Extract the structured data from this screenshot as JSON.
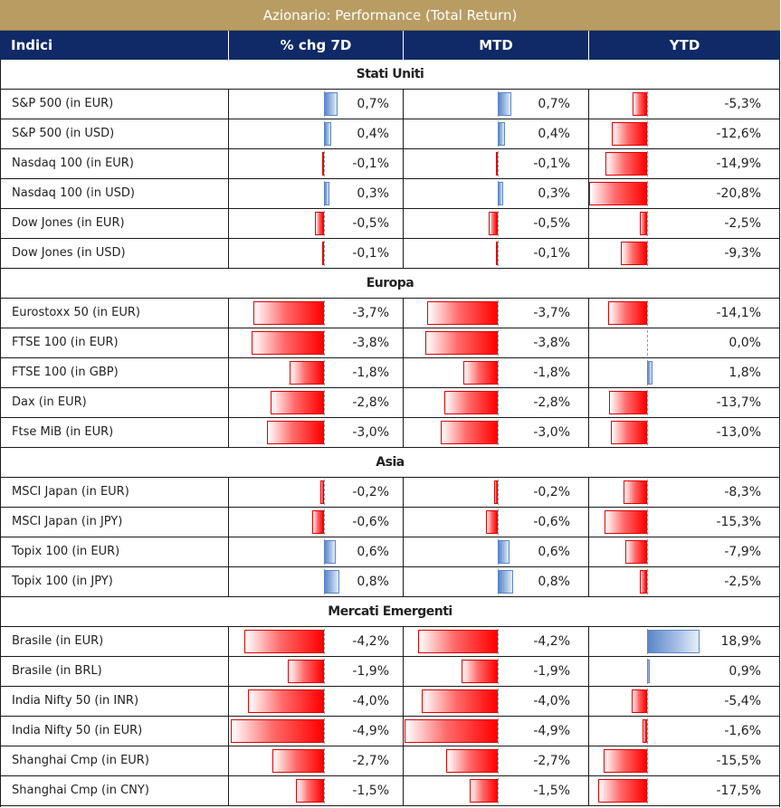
{
  "title": "Azionario: Performance (Total Return)",
  "headers": [
    "Indici",
    "% chg 7D",
    "MTD",
    "YTD"
  ],
  "colors": {
    "title_bg": "#b89c62",
    "header_bg": "#0f2a66",
    "negative_bar": "#ff0000",
    "positive_bar": "#5b86c9"
  },
  "chart_data": {
    "type": "table",
    "title": "Azionario: Performance (Total Return)",
    "columns": [
      "Indici",
      "% chg 7D",
      "MTD",
      "YTD"
    ],
    "sections": [
      {
        "name": "Stati Uniti",
        "rows": [
          {
            "name": "S&P 500 (in EUR)",
            "chg7d": 0.7,
            "mtd": 0.7,
            "ytd": -5.3,
            "chg7d_label": "0,7%",
            "mtd_label": "0,7%",
            "ytd_label": "-5,3%"
          },
          {
            "name": "S&P 500 (in USD)",
            "chg7d": 0.4,
            "mtd": 0.4,
            "ytd": -12.6,
            "chg7d_label": "0,4%",
            "mtd_label": "0,4%",
            "ytd_label": "-12,6%"
          },
          {
            "name": "Nasdaq 100 (in EUR)",
            "chg7d": -0.1,
            "mtd": -0.1,
            "ytd": -14.9,
            "chg7d_label": "-0,1%",
            "mtd_label": "-0,1%",
            "ytd_label": "-14,9%"
          },
          {
            "name": "Nasdaq 100 (in USD)",
            "chg7d": 0.3,
            "mtd": 0.3,
            "ytd": -20.8,
            "chg7d_label": "0,3%",
            "mtd_label": "0,3%",
            "ytd_label": "-20,8%"
          },
          {
            "name": "Dow Jones (in EUR)",
            "chg7d": -0.5,
            "mtd": -0.5,
            "ytd": -2.5,
            "chg7d_label": "-0,5%",
            "mtd_label": "-0,5%",
            "ytd_label": "-2,5%"
          },
          {
            "name": "Dow Jones (in USD)",
            "chg7d": -0.1,
            "mtd": -0.1,
            "ytd": -9.3,
            "chg7d_label": "-0,1%",
            "mtd_label": "-0,1%",
            "ytd_label": "-9,3%"
          }
        ]
      },
      {
        "name": "Europa",
        "rows": [
          {
            "name": "Eurostoxx 50 (in EUR)",
            "chg7d": -3.7,
            "mtd": -3.7,
            "ytd": -14.1,
            "chg7d_label": "-3,7%",
            "mtd_label": "-3,7%",
            "ytd_label": "-14,1%"
          },
          {
            "name": "FTSE 100 (in EUR)",
            "chg7d": -3.8,
            "mtd": -3.8,
            "ytd": 0.0,
            "chg7d_label": "-3,8%",
            "mtd_label": "-3,8%",
            "ytd_label": "0,0%"
          },
          {
            "name": "FTSE 100 (in GBP)",
            "chg7d": -1.8,
            "mtd": -1.8,
            "ytd": 1.8,
            "chg7d_label": "-1,8%",
            "mtd_label": "-1,8%",
            "ytd_label": "1,8%"
          },
          {
            "name": "Dax (in EUR)",
            "chg7d": -2.8,
            "mtd": -2.8,
            "ytd": -13.7,
            "chg7d_label": "-2,8%",
            "mtd_label": "-2,8%",
            "ytd_label": "-13,7%"
          },
          {
            "name": "Ftse MiB (in EUR)",
            "chg7d": -3.0,
            "mtd": -3.0,
            "ytd": -13.0,
            "chg7d_label": "-3,0%",
            "mtd_label": "-3,0%",
            "ytd_label": "-13,0%"
          }
        ]
      },
      {
        "name": "Asia",
        "rows": [
          {
            "name": "MSCI Japan (in EUR)",
            "chg7d": -0.2,
            "mtd": -0.2,
            "ytd": -8.3,
            "chg7d_label": "-0,2%",
            "mtd_label": "-0,2%",
            "ytd_label": "-8,3%"
          },
          {
            "name": "MSCI Japan (in JPY)",
            "chg7d": -0.6,
            "mtd": -0.6,
            "ytd": -15.3,
            "chg7d_label": "-0,6%",
            "mtd_label": "-0,6%",
            "ytd_label": "-15,3%"
          },
          {
            "name": "Topix 100 (in EUR)",
            "chg7d": 0.6,
            "mtd": 0.6,
            "ytd": -7.9,
            "chg7d_label": "0,6%",
            "mtd_label": "0,6%",
            "ytd_label": "-7,9%"
          },
          {
            "name": "Topix 100 (in JPY)",
            "chg7d": 0.8,
            "mtd": 0.8,
            "ytd": -2.5,
            "chg7d_label": "0,8%",
            "mtd_label": "0,8%",
            "ytd_label": "-2,5%"
          }
        ]
      },
      {
        "name": "Mercati Emergenti",
        "rows": [
          {
            "name": "Brasile (in EUR)",
            "chg7d": -4.2,
            "mtd": -4.2,
            "ytd": 18.9,
            "chg7d_label": "-4,2%",
            "mtd_label": "-4,2%",
            "ytd_label": "18,9%"
          },
          {
            "name": "Brasile (in BRL)",
            "chg7d": -1.9,
            "mtd": -1.9,
            "ytd": 0.9,
            "chg7d_label": "-1,9%",
            "mtd_label": "-1,9%",
            "ytd_label": "0,9%"
          },
          {
            "name": "India Nifty 50 (in INR)",
            "chg7d": -4.0,
            "mtd": -4.0,
            "ytd": -5.4,
            "chg7d_label": "-4,0%",
            "mtd_label": "-4,0%",
            "ytd_label": "-5,4%"
          },
          {
            "name": "India Nifty 50 (in EUR)",
            "chg7d": -4.9,
            "mtd": -4.9,
            "ytd": -1.6,
            "chg7d_label": "-4,9%",
            "mtd_label": "-4,9%",
            "ytd_label": "-1,6%"
          },
          {
            "name": "Shanghai Cmp (in EUR)",
            "chg7d": -2.7,
            "mtd": -2.7,
            "ytd": -15.5,
            "chg7d_label": "-2,7%",
            "mtd_label": "-2,7%",
            "ytd_label": "-15,5%"
          },
          {
            "name": "Shanghai Cmp (in CNY)",
            "chg7d": -1.5,
            "mtd": -1.5,
            "ytd": -17.5,
            "chg7d_label": "-1,5%",
            "mtd_label": "-1,5%",
            "ytd_label": "-17,5%"
          }
        ]
      }
    ]
  }
}
